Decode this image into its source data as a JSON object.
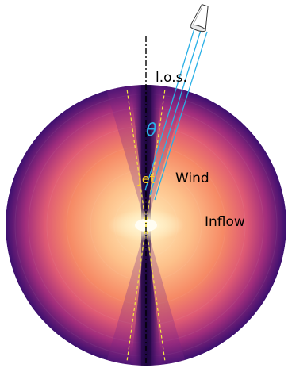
{
  "labels": {
    "los": "l.o.s.",
    "theta": "θ",
    "jet": "Jet",
    "wind": "Wind",
    "inflow": "Inflow"
  },
  "colors": {
    "background": "#ffffff",
    "disk_outer": "#3b0f6f",
    "disk_mid": "#c33f7a",
    "disk_inner": "#fca56a",
    "disk_core": "#fff6d8",
    "jet_channel": "#2a0a4e",
    "jet_boundary": "#f5e642",
    "los_lines": "#2ab0e6",
    "theta_text": "#2ab0e6",
    "jet_text": "#ffd21f",
    "axis_line": "#000000",
    "text": "#000000"
  },
  "icons": {
    "observer": "telescope-icon"
  }
}
